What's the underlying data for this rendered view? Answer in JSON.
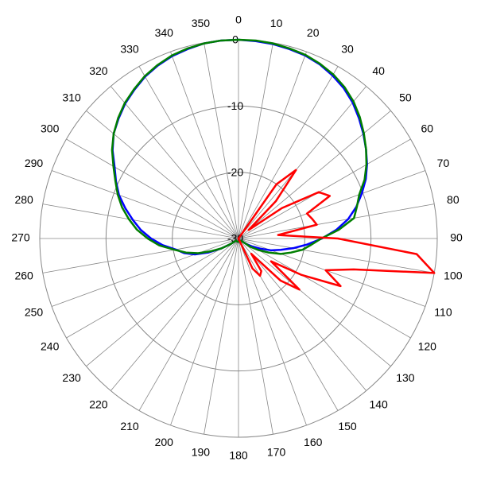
{
  "chart_data": {
    "type": "polar",
    "x": [
      0,
      5,
      10,
      15,
      20,
      25,
      30,
      35,
      40,
      45,
      50,
      55,
      60,
      65,
      70,
      75,
      80,
      85,
      90,
      95,
      100,
      105,
      110,
      115,
      120,
      125,
      130,
      135,
      140,
      145,
      150,
      155,
      160,
      165,
      170,
      175,
      180,
      185,
      190,
      195,
      200,
      205,
      210,
      215,
      220,
      225,
      230,
      235,
      240,
      245,
      250,
      255,
      260,
      265,
      270,
      275,
      280,
      285,
      290,
      295,
      300,
      305,
      310,
      315,
      320,
      325,
      330,
      335,
      340,
      345,
      350,
      355
    ],
    "series": [
      {
        "color": "#0000ff",
        "values": [
          0,
          -0.1,
          -0.2,
          -0.4,
          -0.6,
          -1.0,
          -1.6,
          -2.3,
          -3.2,
          -4.3,
          -5.4,
          -6.5,
          -7.6,
          -8.8,
          -10.2,
          -11.6,
          -13.2,
          -15.2,
          -17.4,
          -19.6,
          -21.6,
          -23.4,
          -24.8,
          -26.4,
          -27.6,
          -28.5,
          -29.5,
          -29.5,
          -29.5,
          -29.5,
          -29.5,
          -29.5,
          -29.5,
          -29.5,
          -29.5,
          -29.5,
          -29.5,
          -29.5,
          -29.5,
          -29.5,
          -29.5,
          -29.5,
          -29.5,
          -29.5,
          -29.5,
          -29.5,
          -29.5,
          -28.5,
          -27,
          -25,
          -23,
          -21.5,
          -20.4,
          -18.5,
          -16.8,
          -15.2,
          -13.8,
          -12.3,
          -10.8,
          -9.6,
          -8.4,
          -6.8,
          -5.4,
          -4.4,
          -3.4,
          -2.6,
          -1.8,
          -1.2,
          -0.7,
          -0.4,
          -0.1,
          0
        ]
      },
      {
        "color": "#007f00",
        "values": [
          0,
          0,
          -0.1,
          -0.3,
          -0.5,
          -0.9,
          -1.4,
          -2.1,
          -3.0,
          -4.1,
          -5.3,
          -6.5,
          -7.7,
          -9.0,
          -10.6,
          -11.5,
          -12.3,
          -14.8,
          -17.5,
          -19.0,
          -20.2,
          -21.8,
          -23.2,
          -25,
          -26.5,
          -27.8,
          -29.5,
          -29.5,
          -29.5,
          -29.5,
          -29.5,
          -29.5,
          -29.5,
          -29.5,
          -29.5,
          -29.5,
          -29.5,
          -29.5,
          -29.5,
          -29.5,
          -29.5,
          -29.5,
          -29.5,
          -29.5,
          -29.5,
          -29.5,
          -29.5,
          -28.5,
          -27,
          -25.5,
          -23.5,
          -21.8,
          -20.2,
          -18,
          -16.3,
          -14.6,
          -13.2,
          -11.8,
          -10.6,
          -9.5,
          -8.2,
          -6.7,
          -5.4,
          -4.3,
          -3.3,
          -2.5,
          -1.7,
          -1.1,
          -0.6,
          -0.3,
          -0.1,
          0
        ]
      },
      {
        "color": "#ff0000",
        "values": [
          -30,
          -30,
          -30,
          -30,
          -30,
          -30,
          -30,
          -20,
          -16.5,
          -22,
          -28,
          -22,
          -16,
          -14.8,
          -19,
          -18.5,
          -18,
          -24,
          -15,
          -3,
          0,
          -12,
          -16,
          -13,
          -19,
          -24,
          -18,
          -21,
          -27,
          -24,
          -23.5,
          -25,
          -30,
          -30,
          -30,
          -30,
          -30,
          -30,
          -30,
          -30,
          -30,
          -30,
          -30,
          -30,
          -30,
          -30,
          -30,
          -30,
          -30,
          -30,
          -30,
          -30,
          -30,
          -30,
          -30,
          -30,
          -30,
          -30,
          -30,
          -30,
          -30,
          -30,
          -30,
          -30,
          -30,
          -30,
          -30,
          -30,
          -30,
          -30,
          -30,
          -30
        ]
      }
    ],
    "rlim": [
      -30,
      0
    ],
    "rticks": [
      -30,
      -20,
      -10,
      0
    ],
    "thetaticks": [
      0,
      10,
      20,
      30,
      40,
      50,
      60,
      70,
      80,
      90,
      100,
      110,
      120,
      130,
      140,
      150,
      160,
      170,
      180,
      190,
      200,
      210,
      220,
      230,
      240,
      250,
      260,
      270,
      280,
      290,
      300,
      310,
      320,
      330,
      340,
      350
    ]
  }
}
